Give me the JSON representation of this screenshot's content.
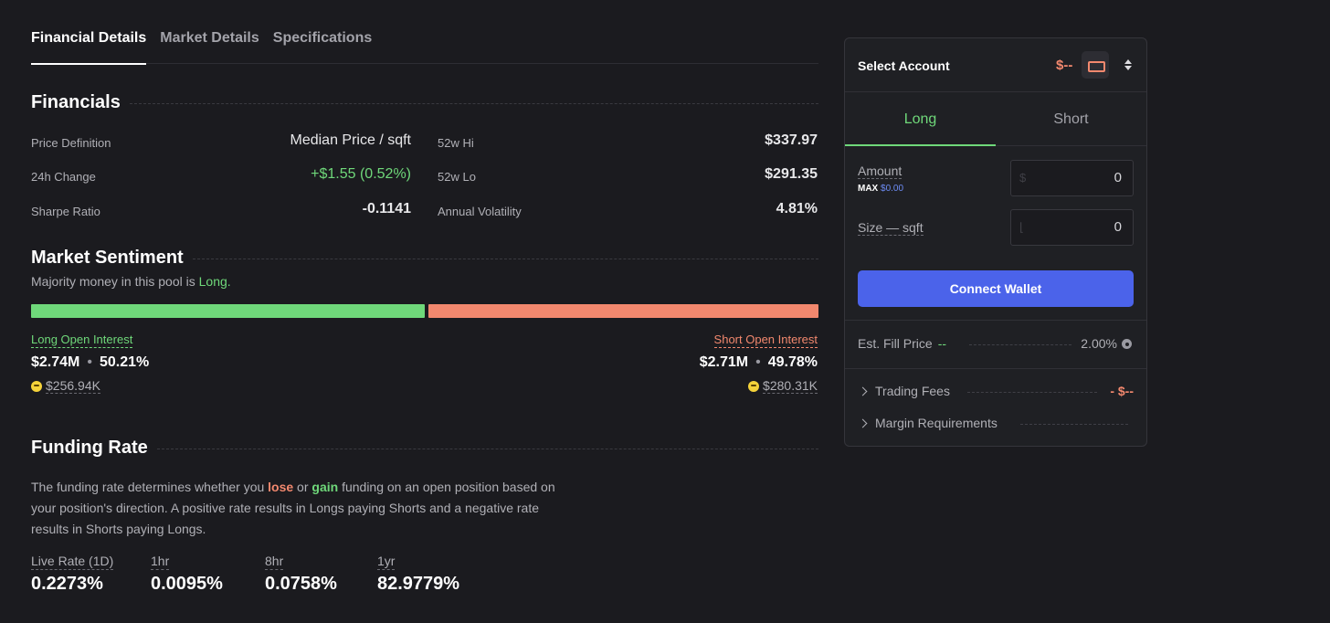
{
  "tabs": [
    {
      "label": "Financial Details"
    },
    {
      "label": "Market Details"
    },
    {
      "label": "Specifications"
    }
  ],
  "financials": {
    "title": "Financials",
    "price_definition_label": "Price Definition",
    "price_definition_value": "Median Price / sqft",
    "change_label": "24h Change",
    "change_value": "+$1.55 (0.52%)",
    "sharpe_label": "Sharpe Ratio",
    "sharpe_value": "-0.1141",
    "hi_label": "52w Hi",
    "hi_value": "$337.97",
    "lo_label": "52w Lo",
    "lo_value": "$291.35",
    "vol_label": "Annual Volatility",
    "vol_value": "4.81%"
  },
  "sentiment": {
    "title": "Market Sentiment",
    "subtitle_prefix": "Majority money in this pool is ",
    "subtitle_side": "Long.",
    "long_fraction": 0.5021,
    "long_label": "Long Open Interest",
    "long_amount": "$2.74M",
    "long_pct": "50.21%",
    "long_sub": "$256.94K",
    "short_label": "Short Open Interest",
    "short_amount": "$2.71M",
    "short_pct": "49.78%",
    "short_sub": "$280.31K",
    "bullet": "•"
  },
  "funding": {
    "title": "Funding Rate",
    "text_1": "The funding rate determines whether you ",
    "lose": "lose",
    "text_or": " or ",
    "gain": "gain",
    "text_2": " funding on an open position based on your position's direction. A positive rate results in Longs paying Shorts and a negative rate results in Shorts paying Longs.",
    "rates": [
      {
        "label": "Live Rate (1D)",
        "value": "0.2273%"
      },
      {
        "label": "1hr",
        "value": "0.0095%"
      },
      {
        "label": "8hr",
        "value": "0.0758%"
      },
      {
        "label": "1yr",
        "value": "82.9779%"
      }
    ]
  },
  "panel": {
    "select_account": "Select Account",
    "balance": "$--",
    "long_tab": "Long",
    "short_tab": "Short",
    "amount_label": "Amount",
    "max_label": "MAX",
    "max_value": "$0.00",
    "amount_prefix": "$",
    "amount_value": "0",
    "size_label": "Size — sqft",
    "size_prefix": "⌊",
    "size_value": "0",
    "connect_label": "Connect Wallet",
    "fill_label": "Est. Fill Price",
    "fill_value": "--",
    "slippage": "2.00%",
    "trading_fees_label": "Trading Fees",
    "trading_fees_value": "- $--",
    "margin_label": "Margin Requirements"
  },
  "colors": {
    "long": "#6fd87a",
    "short": "#f2886e",
    "accent": "#4b63ea"
  }
}
